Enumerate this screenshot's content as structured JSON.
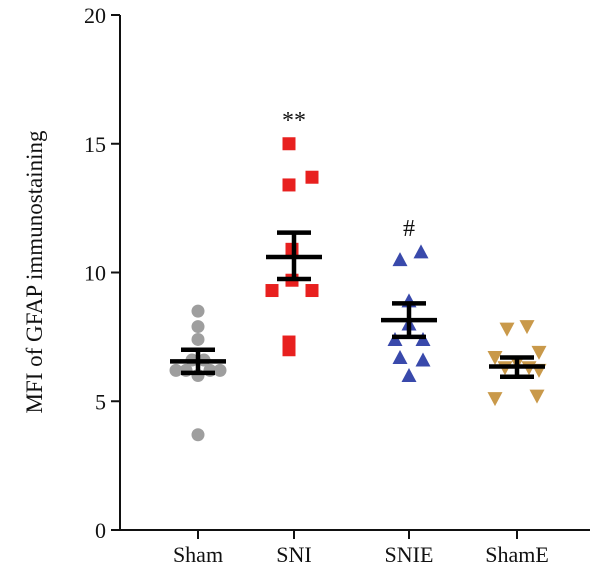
{
  "chart_data": {
    "type": "scatter",
    "ylabel": "MFI of GFAP immunostaining",
    "ylim": [
      0,
      20
    ],
    "yticks": [
      0,
      5,
      10,
      15,
      20
    ],
    "categories": [
      "Sham",
      "SNI",
      "SNIE",
      "ShamE"
    ],
    "series": [
      {
        "category": "Sham",
        "marker": "circle",
        "color": "#9e9e9e",
        "points": [
          {
            "offset": 0,
            "y": 8.5
          },
          {
            "offset": 0,
            "y": 7.9
          },
          {
            "offset": 0,
            "y": 7.4
          },
          {
            "offset": -0.06,
            "y": 6.6
          },
          {
            "offset": 0.06,
            "y": 6.6
          },
          {
            "offset": -0.12,
            "y": 6.2
          },
          {
            "offset": 0.12,
            "y": 6.2
          },
          {
            "offset": 0.22,
            "y": 6.2
          },
          {
            "offset": -0.22,
            "y": 6.2
          },
          {
            "offset": 0,
            "y": 6.0
          },
          {
            "offset": 0,
            "y": 3.7
          }
        ],
        "mean": 6.55,
        "sem_low": 6.1,
        "sem_high": 7.0,
        "annotation": ""
      },
      {
        "category": "SNI",
        "marker": "square",
        "color": "#e8201f",
        "points": [
          {
            "offset": -0.05,
            "y": 15.0
          },
          {
            "offset": 0.18,
            "y": 13.7
          },
          {
            "offset": -0.05,
            "y": 13.4
          },
          {
            "offset": -0.02,
            "y": 10.9
          },
          {
            "offset": -0.02,
            "y": 9.7
          },
          {
            "offset": -0.22,
            "y": 9.3
          },
          {
            "offset": 0.18,
            "y": 9.3
          },
          {
            "offset": -0.05,
            "y": 7.3
          },
          {
            "offset": -0.05,
            "y": 7.0
          }
        ],
        "mean": 10.6,
        "sem_low": 9.75,
        "sem_high": 11.55,
        "annotation": "**"
      },
      {
        "category": "SNIE",
        "marker": "triangle-up",
        "color": "#3949ab",
        "points": [
          {
            "offset": 0.12,
            "y": 10.8
          },
          {
            "offset": -0.09,
            "y": 10.5
          },
          {
            "offset": 0.0,
            "y": 8.9
          },
          {
            "offset": 0.0,
            "y": 8.0
          },
          {
            "offset": -0.14,
            "y": 7.4
          },
          {
            "offset": 0.14,
            "y": 7.4
          },
          {
            "offset": -0.09,
            "y": 6.7
          },
          {
            "offset": 0.14,
            "y": 6.6
          },
          {
            "offset": 0.0,
            "y": 6.0
          }
        ],
        "mean": 8.15,
        "sem_low": 7.5,
        "sem_high": 8.8,
        "annotation": "#"
      },
      {
        "category": "ShamE",
        "marker": "triangle-down",
        "color": "#c9994a",
        "points": [
          {
            "offset": -0.1,
            "y": 7.8
          },
          {
            "offset": 0.1,
            "y": 7.9
          },
          {
            "offset": 0.22,
            "y": 6.9
          },
          {
            "offset": -0.22,
            "y": 6.7
          },
          {
            "offset": 0.0,
            "y": 6.5
          },
          {
            "offset": 0.12,
            "y": 6.3
          },
          {
            "offset": -0.12,
            "y": 6.3
          },
          {
            "offset": 0.22,
            "y": 6.2
          },
          {
            "offset": 0.2,
            "y": 5.2
          },
          {
            "offset": -0.22,
            "y": 5.1
          }
        ],
        "mean": 6.35,
        "sem_low": 5.95,
        "sem_high": 6.7,
        "annotation": ""
      }
    ]
  }
}
